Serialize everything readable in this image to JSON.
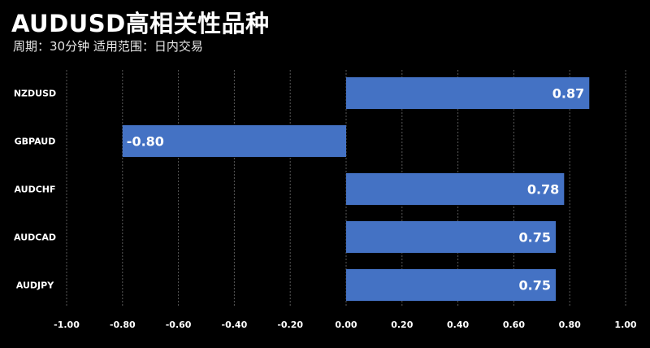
{
  "chart_data": {
    "type": "bar",
    "orientation": "horizontal",
    "title": "AUDUSD高相关性品种",
    "subtitle": "周期：30分钟  适用范围：日内交易",
    "categories": [
      "NZDUSD",
      "GBPAUD",
      "AUDCHF",
      "AUDCAD",
      "AUDJPY"
    ],
    "values": [
      0.87,
      -0.8,
      0.78,
      0.75,
      0.75
    ],
    "value_labels": [
      "0.87",
      "-0.80",
      "0.78",
      "0.75",
      "0.75"
    ],
    "xlim": [
      -1.0,
      1.0
    ],
    "xticks": [
      "-1.00",
      "-0.80",
      "-0.60",
      "-0.40",
      "-0.20",
      "0.00",
      "0.20",
      "0.40",
      "0.60",
      "0.80",
      "1.00"
    ],
    "xtick_values": [
      -1.0,
      -0.8,
      -0.6,
      -0.4,
      -0.2,
      0.0,
      0.2,
      0.4,
      0.6,
      0.8,
      1.0
    ],
    "grid": "vertical",
    "legend": "none",
    "bar_color": "#4472c4",
    "background_color": "#000000",
    "grid_color": "#595959"
  }
}
